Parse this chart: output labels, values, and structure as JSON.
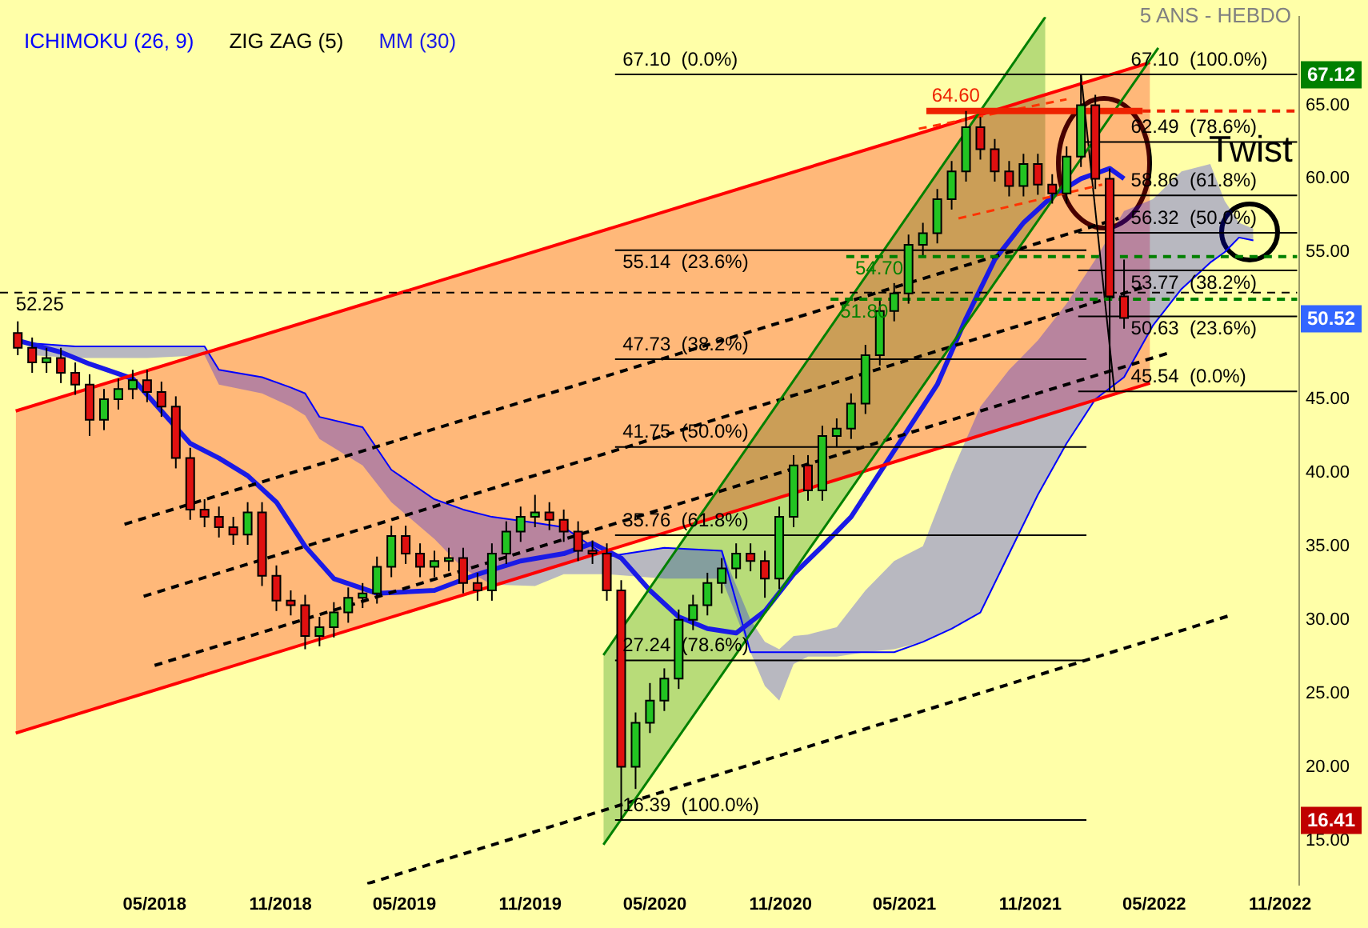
{
  "chart_data": {
    "type": "candlestick",
    "subtitle": "5 ANS - HEBDO",
    "x": [
      "2017-10-13",
      "2017-11-03",
      "2017-11-24",
      "2017-12-15",
      "2018-01-05",
      "2018-01-26",
      "2018-02-16",
      "2018-03-09",
      "2018-03-30",
      "2018-04-20",
      "2018-05-11",
      "2018-06-01",
      "2018-06-22",
      "2018-07-13",
      "2018-08-03",
      "2018-08-24",
      "2018-09-14",
      "2018-10-05",
      "2018-10-26",
      "2018-11-16",
      "2018-12-07",
      "2018-12-28",
      "2019-01-18",
      "2019-02-08",
      "2019-03-01",
      "2019-03-22",
      "2019-04-12",
      "2019-05-03",
      "2019-05-24",
      "2019-06-14",
      "2019-07-05",
      "2019-07-26",
      "2019-08-16",
      "2019-09-06",
      "2019-09-27",
      "2019-10-18",
      "2019-11-08",
      "2019-11-29",
      "2019-12-20",
      "2020-01-10",
      "2020-01-31",
      "2020-02-21",
      "2020-03-13",
      "2020-04-03",
      "2020-04-24",
      "2020-05-15",
      "2020-06-05",
      "2020-06-26",
      "2020-07-17",
      "2020-08-07",
      "2020-08-28",
      "2020-09-18",
      "2020-10-09",
      "2020-10-30",
      "2020-11-20",
      "2020-12-11",
      "2021-01-01",
      "2021-01-22",
      "2021-02-12",
      "2021-03-05",
      "2021-03-26",
      "2021-04-16",
      "2021-05-07",
      "2021-05-28",
      "2021-06-18",
      "2021-07-09",
      "2021-07-30",
      "2021-08-20",
      "2021-09-10",
      "2021-10-01",
      "2021-10-22",
      "2021-11-12",
      "2021-12-03",
      "2021-12-24",
      "2022-01-14",
      "2022-02-04",
      "2022-02-25",
      "2022-03-18"
    ],
    "ohlc": [
      [
        49.5,
        50.3,
        48.0,
        48.5
      ],
      [
        48.5,
        49.2,
        46.8,
        47.5
      ],
      [
        47.5,
        48.5,
        46.8,
        47.8
      ],
      [
        47.8,
        48.5,
        46.1,
        46.8
      ],
      [
        46.8,
        47.5,
        45.3,
        46.0
      ],
      [
        46.0,
        46.7,
        42.5,
        43.6
      ],
      [
        43.6,
        45.7,
        42.9,
        45.0
      ],
      [
        45.0,
        46.4,
        44.3,
        45.7
      ],
      [
        45.7,
        47.0,
        45.0,
        46.3
      ],
      [
        46.3,
        47.0,
        44.8,
        45.5
      ],
      [
        45.5,
        46.2,
        43.8,
        44.5
      ],
      [
        44.5,
        45.2,
        40.3,
        41.0
      ],
      [
        41.0,
        41.7,
        36.8,
        37.5
      ],
      [
        37.5,
        38.2,
        36.3,
        37.0
      ],
      [
        37.0,
        37.7,
        35.6,
        36.3
      ],
      [
        36.3,
        37.0,
        35.1,
        35.8
      ],
      [
        35.8,
        38.0,
        35.1,
        37.3
      ],
      [
        37.3,
        38.0,
        32.3,
        33.0
      ],
      [
        33.0,
        33.7,
        30.6,
        31.3
      ],
      [
        31.3,
        32.0,
        30.3,
        31.0
      ],
      [
        31.0,
        31.7,
        28.0,
        28.9
      ],
      [
        28.9,
        30.2,
        28.2,
        29.5
      ],
      [
        29.5,
        31.2,
        28.8,
        30.5
      ],
      [
        30.5,
        32.2,
        29.8,
        31.5
      ],
      [
        31.5,
        32.5,
        30.8,
        31.8
      ],
      [
        31.8,
        34.3,
        31.1,
        33.6
      ],
      [
        33.6,
        36.4,
        32.9,
        35.7
      ],
      [
        35.7,
        36.4,
        33.8,
        34.5
      ],
      [
        34.5,
        35.2,
        32.9,
        33.6
      ],
      [
        33.6,
        34.7,
        32.9,
        34.0
      ],
      [
        34.0,
        34.9,
        33.3,
        34.2
      ],
      [
        34.2,
        34.9,
        31.8,
        32.5
      ],
      [
        32.5,
        33.2,
        31.3,
        32.0
      ],
      [
        32.0,
        35.2,
        31.3,
        34.5
      ],
      [
        34.5,
        36.7,
        33.8,
        36.0
      ],
      [
        36.0,
        37.7,
        35.3,
        37.0
      ],
      [
        37.0,
        38.5,
        36.3,
        37.3
      ],
      [
        37.3,
        38.0,
        36.1,
        36.8
      ],
      [
        36.8,
        37.5,
        35.3,
        36.0
      ],
      [
        36.0,
        36.7,
        34.0,
        34.7
      ],
      [
        34.7,
        35.4,
        33.8,
        34.5
      ],
      [
        34.5,
        35.2,
        31.3,
        32.0
      ],
      [
        32.0,
        32.7,
        16.39,
        20.0
      ],
      [
        20.0,
        23.7,
        18.5,
        23.0
      ],
      [
        23.0,
        25.7,
        22.3,
        24.5
      ],
      [
        24.5,
        26.7,
        23.8,
        26.0
      ],
      [
        26.0,
        30.7,
        25.3,
        30.0
      ],
      [
        30.0,
        31.7,
        29.3,
        31.0
      ],
      [
        31.0,
        33.2,
        30.3,
        32.5
      ],
      [
        32.5,
        34.2,
        31.8,
        33.5
      ],
      [
        33.5,
        35.2,
        32.8,
        34.5
      ],
      [
        34.5,
        35.2,
        33.3,
        34.0
      ],
      [
        34.0,
        34.7,
        31.5,
        32.8
      ],
      [
        32.8,
        37.7,
        32.1,
        37.0
      ],
      [
        37.0,
        41.2,
        36.3,
        40.5
      ],
      [
        40.5,
        41.2,
        38.1,
        38.8
      ],
      [
        38.8,
        43.2,
        38.1,
        42.5
      ],
      [
        42.5,
        43.7,
        41.8,
        43.0
      ],
      [
        43.0,
        45.4,
        42.3,
        44.7
      ],
      [
        44.7,
        48.7,
        44.0,
        48.0
      ],
      [
        48.0,
        51.7,
        47.3,
        51.0
      ],
      [
        51.0,
        52.9,
        50.3,
        52.2
      ],
      [
        52.2,
        56.2,
        51.5,
        55.5
      ],
      [
        55.5,
        57.0,
        54.8,
        56.3
      ],
      [
        56.3,
        59.3,
        55.6,
        58.6
      ],
      [
        58.6,
        61.2,
        57.9,
        60.5
      ],
      [
        60.5,
        64.6,
        59.8,
        63.5
      ],
      [
        63.5,
        64.2,
        61.3,
        62.0
      ],
      [
        62.0,
        62.7,
        59.8,
        60.5
      ],
      [
        60.5,
        61.2,
        58.8,
        59.5
      ],
      [
        59.5,
        61.7,
        58.8,
        61.0
      ],
      [
        61.0,
        61.7,
        58.9,
        59.6
      ],
      [
        59.6,
        60.3,
        58.3,
        59.0
      ],
      [
        59.0,
        62.2,
        58.3,
        61.5
      ],
      [
        61.5,
        67.1,
        60.8,
        65.0
      ],
      [
        65.0,
        65.7,
        59.3,
        60.0
      ],
      [
        60.0,
        60.7,
        45.54,
        52.0
      ],
      [
        52.0,
        54.5,
        49.8,
        50.52
      ]
    ],
    "series": [
      {
        "name": "ICHIMOKU (26, 9)",
        "type": "line",
        "color": "#0000ff",
        "x": [
          "2017-11-03",
          "2018-01-05",
          "2018-04-20",
          "2018-07-13",
          "2018-08-03",
          "2018-10-05",
          "2018-11-16",
          "2018-12-07",
          "2018-12-28",
          "2019-03-01",
          "2019-04-12",
          "2019-06-14",
          "2019-07-26",
          "2019-09-06",
          "2019-11-08",
          "2019-12-20",
          "2020-02-21",
          "2020-05-15",
          "2020-08-07",
          "2020-09-18",
          "2020-10-09",
          "2020-10-30",
          "2020-11-20",
          "2020-12-11",
          "2021-01-22",
          "2021-03-05",
          "2021-04-16",
          "2021-05-28",
          "2021-07-09",
          "2021-08-20",
          "2021-10-01",
          "2021-11-12",
          "2021-12-24",
          "2022-02-04",
          "2022-03-18",
          "2022-04-29",
          "2022-06-10",
          "2022-07-22",
          "2022-08-12",
          "2022-09-02",
          "2022-09-23"
        ],
        "values": [
          48.8,
          48.6,
          48.6,
          48.6,
          47.0,
          46.5,
          45.8,
          45.4,
          43.8,
          43.1,
          40.2,
          38.2,
          37.5,
          37.0,
          36.6,
          36.3,
          34.3,
          34.9,
          34.7,
          27.8,
          27.8,
          27.8,
          27.8,
          27.8,
          27.8,
          27.8,
          27.8,
          28.5,
          29.4,
          30.5,
          34.5,
          38.5,
          42.0,
          45.0,
          46.5,
          50.0,
          52.5,
          54.3,
          55.0,
          56.0,
          55.8
        ],
        "lower": [
          48.0,
          47.8,
          47.8,
          48.0,
          46.0,
          45.4,
          44.5,
          43.9,
          42.3,
          40.5,
          38.0,
          35.5,
          33.5,
          32.4,
          32.3,
          33.1,
          33.1,
          32.8,
          32.8,
          27.8,
          25.5,
          24.5,
          27.0,
          27.5,
          27.5,
          27.8,
          28.0,
          28.5,
          29.4,
          30.5,
          34.5,
          38.5,
          42.0,
          45.0,
          46.5,
          50.0,
          52.5,
          54.3,
          55.0,
          56.0,
          55.8
        ],
        "upper": [
          48.8,
          48.6,
          48.6,
          48.6,
          47.0,
          46.5,
          45.8,
          45.4,
          43.8,
          43.1,
          40.2,
          38.2,
          37.5,
          37.0,
          36.6,
          36.3,
          34.3,
          34.9,
          34.7,
          30.0,
          28.5,
          28.0,
          28.9,
          29.0,
          29.5,
          32.0,
          34.0,
          35.0,
          40.0,
          44.5,
          47.0,
          49.0,
          51.5,
          54.5,
          57.8,
          58.6,
          60.5,
          61.0,
          58.5,
          57.0,
          56.6
        ]
      },
      {
        "name": "ZIG ZAG (5)",
        "type": "line",
        "color": "#000000",
        "x": [
          "2022-01-14",
          "2022-03-04"
        ],
        "values": [
          67.1,
          45.54
        ]
      },
      {
        "name": "MM (30)",
        "type": "line",
        "color": "#1a1ae6",
        "x": [
          "2017-10-13",
          "2017-12-15",
          "2018-01-26",
          "2018-03-30",
          "2018-05-11",
          "2018-06-22",
          "2018-08-03",
          "2018-09-14",
          "2018-10-26",
          "2018-12-07",
          "2019-01-18",
          "2019-03-22",
          "2019-06-14",
          "2019-08-16",
          "2019-10-18",
          "2019-12-20",
          "2020-01-31",
          "2020-03-13",
          "2020-04-24",
          "2020-06-05",
          "2020-07-17",
          "2020-08-28",
          "2020-10-09",
          "2020-11-20",
          "2021-01-01",
          "2021-02-12",
          "2021-03-26",
          "2021-05-07",
          "2021-06-18",
          "2021-07-30",
          "2021-09-10",
          "2021-10-22",
          "2021-12-03",
          "2022-01-14",
          "2022-02-25",
          "2022-03-18"
        ],
        "values": [
          49.0,
          48.2,
          47.4,
          46.4,
          44.2,
          42.0,
          41.0,
          39.8,
          38.0,
          35.0,
          32.8,
          31.8,
          32.0,
          33.1,
          34.0,
          34.5,
          35.2,
          34.2,
          32.0,
          30.2,
          29.4,
          29.1,
          30.6,
          33.1,
          35.0,
          37.0,
          40.0,
          43.0,
          46.0,
          50.5,
          54.5,
          57.0,
          58.8,
          60.0,
          60.7,
          60.0
        ]
      },
      {
        "type": "line",
        "color": "#ff0000",
        "x": [
          "2017-10-10",
          "2022-04-25"
        ],
        "values": [
          44.2,
          67.9
        ],
        "lower": [
          22.3,
          46.1
        ],
        "upper": [
          44.2,
          67.9
        ]
      },
      {
        "type": "line",
        "color": "#ff0000",
        "x": [
          "2017-10-10",
          "2022-04-25"
        ],
        "values": [
          22.3,
          46.1
        ]
      },
      {
        "type": "line",
        "color": "#000000",
        "line_style": "dashed",
        "x": [
          "2018-03-18",
          "2022-03-10"
        ],
        "values": [
          36.5,
          57.3
        ]
      },
      {
        "type": "line",
        "color": "#000000",
        "line_style": "dashed",
        "x": [
          "2018-04-15",
          "2022-04-14"
        ],
        "values": [
          31.6,
          52.6
        ]
      },
      {
        "type": "line",
        "color": "#000000",
        "line_style": "dashed",
        "x": [
          "2018-05-01",
          "2022-05-26"
        ],
        "values": [
          26.9,
          48.2
        ]
      },
      {
        "type": "line",
        "color": "#000000",
        "line_style": "dashed",
        "x": [
          "2019-03-08",
          "2022-08-20"
        ],
        "values": [
          12.05,
          30.3
        ]
      },
      {
        "type": "line",
        "color": "#ff3300",
        "line_style": "dashed",
        "x": [
          "2021-05-22",
          "2021-12-24"
        ],
        "values": [
          63.4,
          65.4
        ]
      },
      {
        "type": "line",
        "color": "#ff3300",
        "line_style": "dashed",
        "x": [
          "2021-07-19",
          "2022-02-14"
        ],
        "values": [
          57.3,
          59.6
        ]
      },
      {
        "type": "line",
        "color": "#008000",
        "x": [
          "2020-02-16",
          "2021-11-23"
        ],
        "values": [
          27.6,
          71.0
        ],
        "lower": [
          14.7,
          57.8
        ],
        "upper": [
          27.6,
          71.0
        ]
      },
      {
        "type": "line",
        "color": "#008000",
        "x": [
          "2020-02-16",
          "2022-05-07"
        ],
        "values": [
          14.7,
          68.9
        ]
      },
      {
        "type": "line",
        "color": "#ee2200",
        "x": [
          "2021-06-02",
          "2022-04-14"
        ],
        "values": [
          64.6,
          64.6
        ]
      },
      {
        "type": "line",
        "color": "#ee2200",
        "line_style": "dashed",
        "x": [
          "2022-04-14",
          "2022-11-26"
        ],
        "values": [
          64.6,
          64.6
        ]
      },
      {
        "type": "line",
        "color": "#008000",
        "line_style": "dashed",
        "x": [
          "2021-02-05",
          "2022-11-26"
        ],
        "values": [
          54.7,
          54.7
        ]
      },
      {
        "type": "line",
        "color": "#008000",
        "line_style": "dashed",
        "x": [
          "2021-01-13",
          "2022-11-26"
        ],
        "values": [
          51.8,
          51.8
        ]
      },
      {
        "type": "line",
        "color": "#000000",
        "line_style": "dashed",
        "x": [
          "2017-09-17",
          "2022-11-26"
        ],
        "values": [
          52.25,
          52.25
        ]
      },
      {
        "type": "line",
        "color": "#000000",
        "x": [
          "2020-03-04",
          "2022-11-26"
        ],
        "values": [
          67.1,
          67.1
        ]
      },
      {
        "type": "line",
        "color": "#000000",
        "x": [
          "2020-03-04",
          "2022-01-22"
        ],
        "values": [
          55.14,
          55.14
        ]
      },
      {
        "type": "line",
        "color": "#000000",
        "x": [
          "2020-03-04",
          "2022-01-22"
        ],
        "values": [
          47.73,
          47.73
        ]
      },
      {
        "type": "line",
        "color": "#000000",
        "x": [
          "2020-03-04",
          "2022-01-22"
        ],
        "values": [
          41.75,
          41.75
        ]
      },
      {
        "type": "line",
        "color": "#000000",
        "x": [
          "2020-03-04",
          "2022-01-22"
        ],
        "values": [
          35.76,
          35.76
        ]
      },
      {
        "type": "line",
        "color": "#000000",
        "x": [
          "2020-03-04",
          "2022-01-22"
        ],
        "values": [
          27.24,
          27.24
        ]
      },
      {
        "type": "line",
        "color": "#000000",
        "x": [
          "2020-03-04",
          "2022-01-22"
        ],
        "values": [
          16.39,
          16.39
        ]
      },
      {
        "type": "line",
        "color": "#000000",
        "x": [
          "2022-01-10",
          "2022-11-26"
        ],
        "values": [
          62.49,
          62.49
        ]
      },
      {
        "type": "line",
        "color": "#000000",
        "x": [
          "2022-01-10",
          "2022-11-26"
        ],
        "values": [
          58.86,
          58.86
        ]
      },
      {
        "type": "line",
        "color": "#000000",
        "x": [
          "2022-01-10",
          "2022-11-26"
        ],
        "values": [
          56.32,
          56.32
        ]
      },
      {
        "type": "line",
        "color": "#000000",
        "x": [
          "2022-01-10",
          "2022-11-26"
        ],
        "values": [
          53.77,
          53.77
        ]
      },
      {
        "type": "line",
        "color": "#000000",
        "x": [
          "2022-01-10",
          "2022-11-26"
        ],
        "values": [
          50.63,
          50.63
        ]
      },
      {
        "type": "line",
        "color": "#000000",
        "x": [
          "2022-01-10",
          "2022-11-26"
        ],
        "values": [
          45.54,
          45.54
        ]
      }
    ],
    "xlim": [
      "2017-09-17",
      "2022-11-29"
    ],
    "xticks": [
      {
        "value": "2018-05-01",
        "label": "05/2018"
      },
      {
        "value": "2018-11-01",
        "label": "11/2018"
      },
      {
        "value": "2019-05-01",
        "label": "05/2019"
      },
      {
        "value": "2019-11-01",
        "label": "11/2019"
      },
      {
        "value": "2020-05-01",
        "label": "05/2020"
      },
      {
        "value": "2020-11-01",
        "label": "11/2020"
      },
      {
        "value": "2021-05-01",
        "label": "05/2021"
      },
      {
        "value": "2021-11-01",
        "label": "11/2021"
      },
      {
        "value": "2022-05-01",
        "label": "05/2022"
      },
      {
        "value": "2022-11-01",
        "label": "11/2022"
      }
    ],
    "ylim": [
      12,
      71
    ],
    "yticks": [
      {
        "value": 15,
        "label": "15.00"
      },
      {
        "value": 20,
        "label": "20.00"
      },
      {
        "value": 25,
        "label": "25.00"
      },
      {
        "value": 30,
        "label": "30.00"
      },
      {
        "value": 35,
        "label": "35.00"
      },
      {
        "value": 40,
        "label": "40.00"
      },
      {
        "value": 45,
        "label": "45.00"
      },
      {
        "value": 55,
        "label": "55.00"
      },
      {
        "value": 60,
        "label": "60.00"
      },
      {
        "value": 65,
        "label": "65.00"
      }
    ],
    "annotations": [
      {
        "text": "67.10  (0.0%)",
        "x": "2020-03-15",
        "y": 67.1
      },
      {
        "text": "55.14  (23.6%)",
        "x": "2020-03-15",
        "y": 55.14
      },
      {
        "text": "47.73  (38.2%)",
        "x": "2020-03-15",
        "y": 47.73
      },
      {
        "text": "41.75  (50.0%)",
        "x": "2020-03-15",
        "y": 41.75
      },
      {
        "text": "35.76  (61.8%)",
        "x": "2020-03-15",
        "y": 35.76
      },
      {
        "text": "27.24  (78.6%)",
        "x": "2020-03-15",
        "y": 27.24
      },
      {
        "text": "16.39  (100.0%)",
        "x": "2020-03-15",
        "y": 16.39
      },
      {
        "text": "67.10  (100.0%)",
        "x": "2022-03-28",
        "y": 67.1
      },
      {
        "text": "62.49  (78.6%)",
        "x": "2022-03-28",
        "y": 62.49
      },
      {
        "text": "58.86  (61.8%)",
        "x": "2022-03-28",
        "y": 58.86
      },
      {
        "text": "56.32  (50.0%)",
        "x": "2022-03-28",
        "y": 56.32
      },
      {
        "text": "53.77  (38.2%)",
        "x": "2022-03-28",
        "y": 53.77
      },
      {
        "text": "50.63  (23.6%)",
        "x": "2022-03-28",
        "y": 50.63
      },
      {
        "text": "45.54  (0.0%)",
        "x": "2022-03-28",
        "y": 45.54
      },
      {
        "text": "64.60",
        "x": "2021-06-10",
        "y": 64.6
      },
      {
        "text": "54.70",
        "x": "2021-02-18",
        "y": 54.7
      },
      {
        "text": "51.80",
        "x": "2021-01-27",
        "y": 51.8
      },
      {
        "text": "52.25",
        "x": "2017-10-10",
        "y": 52.25
      },
      {
        "text": "Twist",
        "x": "2022-07-20",
        "y": 60.3
      },
      {
        "text": "67.12",
        "y": 67.12
      },
      {
        "text": "50.52",
        "y": 50.52
      },
      {
        "text": "16.41",
        "y": 16.41
      }
    ],
    "legend": "top left",
    "grid": false
  }
}
